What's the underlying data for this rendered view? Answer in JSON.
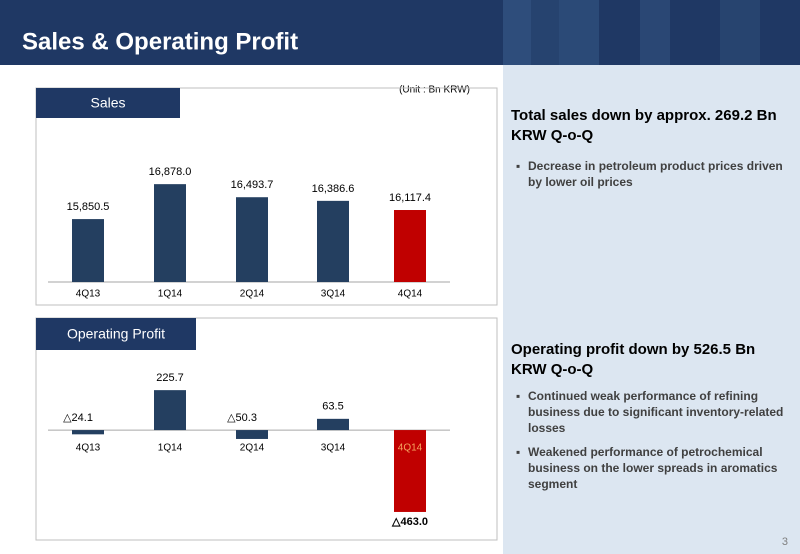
{
  "header": {
    "title": "Sales & Operating Profit"
  },
  "unit": "(Unit : Bn KRW)",
  "chart_data": [
    {
      "type": "bar",
      "title": "Sales",
      "categories": [
        "4Q13",
        "1Q14",
        "2Q14",
        "3Q14",
        "4Q14"
      ],
      "values": [
        15850.5,
        16878.0,
        16493.7,
        16386.6,
        16117.4
      ],
      "value_labels": [
        "15,850.5",
        "16,878.0",
        "16,493.7",
        "16,386.6",
        "16,117.4"
      ],
      "colors": [
        "#243f60",
        "#243f60",
        "#243f60",
        "#243f60",
        "#c00000"
      ],
      "ylim": [
        14000,
        18500
      ]
    },
    {
      "type": "bar",
      "title": "Operating Profit",
      "categories": [
        "4Q13",
        "1Q14",
        "2Q14",
        "3Q14",
        "4Q14"
      ],
      "values": [
        -24.1,
        225.7,
        -50.3,
        63.5,
        -463.0
      ],
      "value_labels": [
        "△24.1",
        "225.7",
        "△50.3",
        "63.5",
        "△463.0"
      ],
      "colors": [
        "#243f60",
        "#243f60",
        "#243f60",
        "#243f60",
        "#c00000"
      ],
      "ylim": [
        -500,
        300
      ]
    }
  ],
  "commentary": [
    {
      "heading": "Total sales down by approx. 269.2 Bn KRW Q-o-Q",
      "bullets": [
        "Decrease in petroleum product prices driven by lower oil prices"
      ]
    },
    {
      "heading": "Operating profit down by 526.5 Bn KRW Q-o-Q",
      "bullets": [
        "Continued weak performance of refining business due to significant inventory-related losses",
        "Weakened performance of petrochemical business on the lower spreads in aromatics segment"
      ]
    }
  ],
  "page_number": "3"
}
